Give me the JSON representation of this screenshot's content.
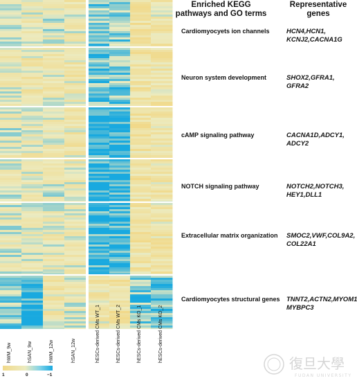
{
  "headers": {
    "pathways": "Enriched KEGG pathways and GO terms",
    "genes": "Representative genes"
  },
  "rows": [
    {
      "pathway": "Cardiomyocyets ion channels",
      "genes": "HCN4,HCN1, KCNJ2,CACNA1G"
    },
    {
      "pathway": "Neuron system development",
      "genes": "SHOX2,GFRA1, GFRA2"
    },
    {
      "pathway": "cAMP signaling pathway",
      "genes": "CACNA1D,ADCY1, ADCY2"
    },
    {
      "pathway": "NOTCH signaling pathway",
      "genes": "NOTCH2,NOTCH3, HEY1,DLL1"
    },
    {
      "pathway": "Extracellular matrix organization",
      "genes": "SMOC2,VWF,COL9A2, COL22A1"
    },
    {
      "pathway": "Cardiomyocytes structural genes",
      "genes": "TNNT2,ACTN2,MYOM1, MYBPC3"
    }
  ],
  "chart_data": {
    "type": "heatmap",
    "columns": [
      "hWM_9w",
      "hSAN_9w",
      "hWM_12w",
      "hSAN_12w",
      "hESCs-derived CMs WT_1",
      "hESCs-derived CMs WT_2",
      "hESCs-derived CMs KO_1",
      "hESCs-derived CMs KO_2"
    ],
    "column_groups": [
      [
        "hWM_9w",
        "hSAN_9w",
        "hWM_12w",
        "hSAN_12w"
      ],
      [
        "hESCs-derived CMs WT_1",
        "hESCs-derived CMs WT_2",
        "hESCs-derived CMs KO_1",
        "hESCs-derived CMs KO_2"
      ]
    ],
    "row_clusters": [
      "Cardiomyocyets ion channels",
      "Neuron system development",
      "cAMP signaling pathway",
      "NOTCH signaling pathway",
      "Extracellular matrix organization",
      "Cardiomyocytes structural genes"
    ],
    "cluster_mean_values": [
      [
        0.0,
        0.1,
        0.0,
        0.2,
        -0.5,
        -0.4,
        0.6,
        0.3
      ],
      [
        0.1,
        0.3,
        0.2,
        0.3,
        -0.6,
        -0.5,
        0.5,
        0.4
      ],
      [
        0.0,
        0.2,
        0.1,
        0.3,
        -0.9,
        -0.9,
        0.5,
        0.3
      ],
      [
        0.0,
        0.1,
        0.0,
        0.2,
        -0.9,
        -0.8,
        0.5,
        0.4
      ],
      [
        0.0,
        0.1,
        0.1,
        0.2,
        -0.8,
        -0.8,
        0.5,
        0.4
      ],
      [
        -0.4,
        -0.9,
        0.3,
        0.1,
        0.3,
        0.5,
        -0.5,
        -0.6
      ]
    ],
    "value_range": [
      -1,
      1
    ],
    "color_low": "#19a9df",
    "color_mid": "#ecebc0",
    "color_high": "#f1d98a",
    "legend_ticks": [
      "1",
      "0",
      "−1"
    ]
  },
  "watermark": {
    "text": "復旦大學",
    "subtext": "FUDAN UNIVERSITY"
  }
}
